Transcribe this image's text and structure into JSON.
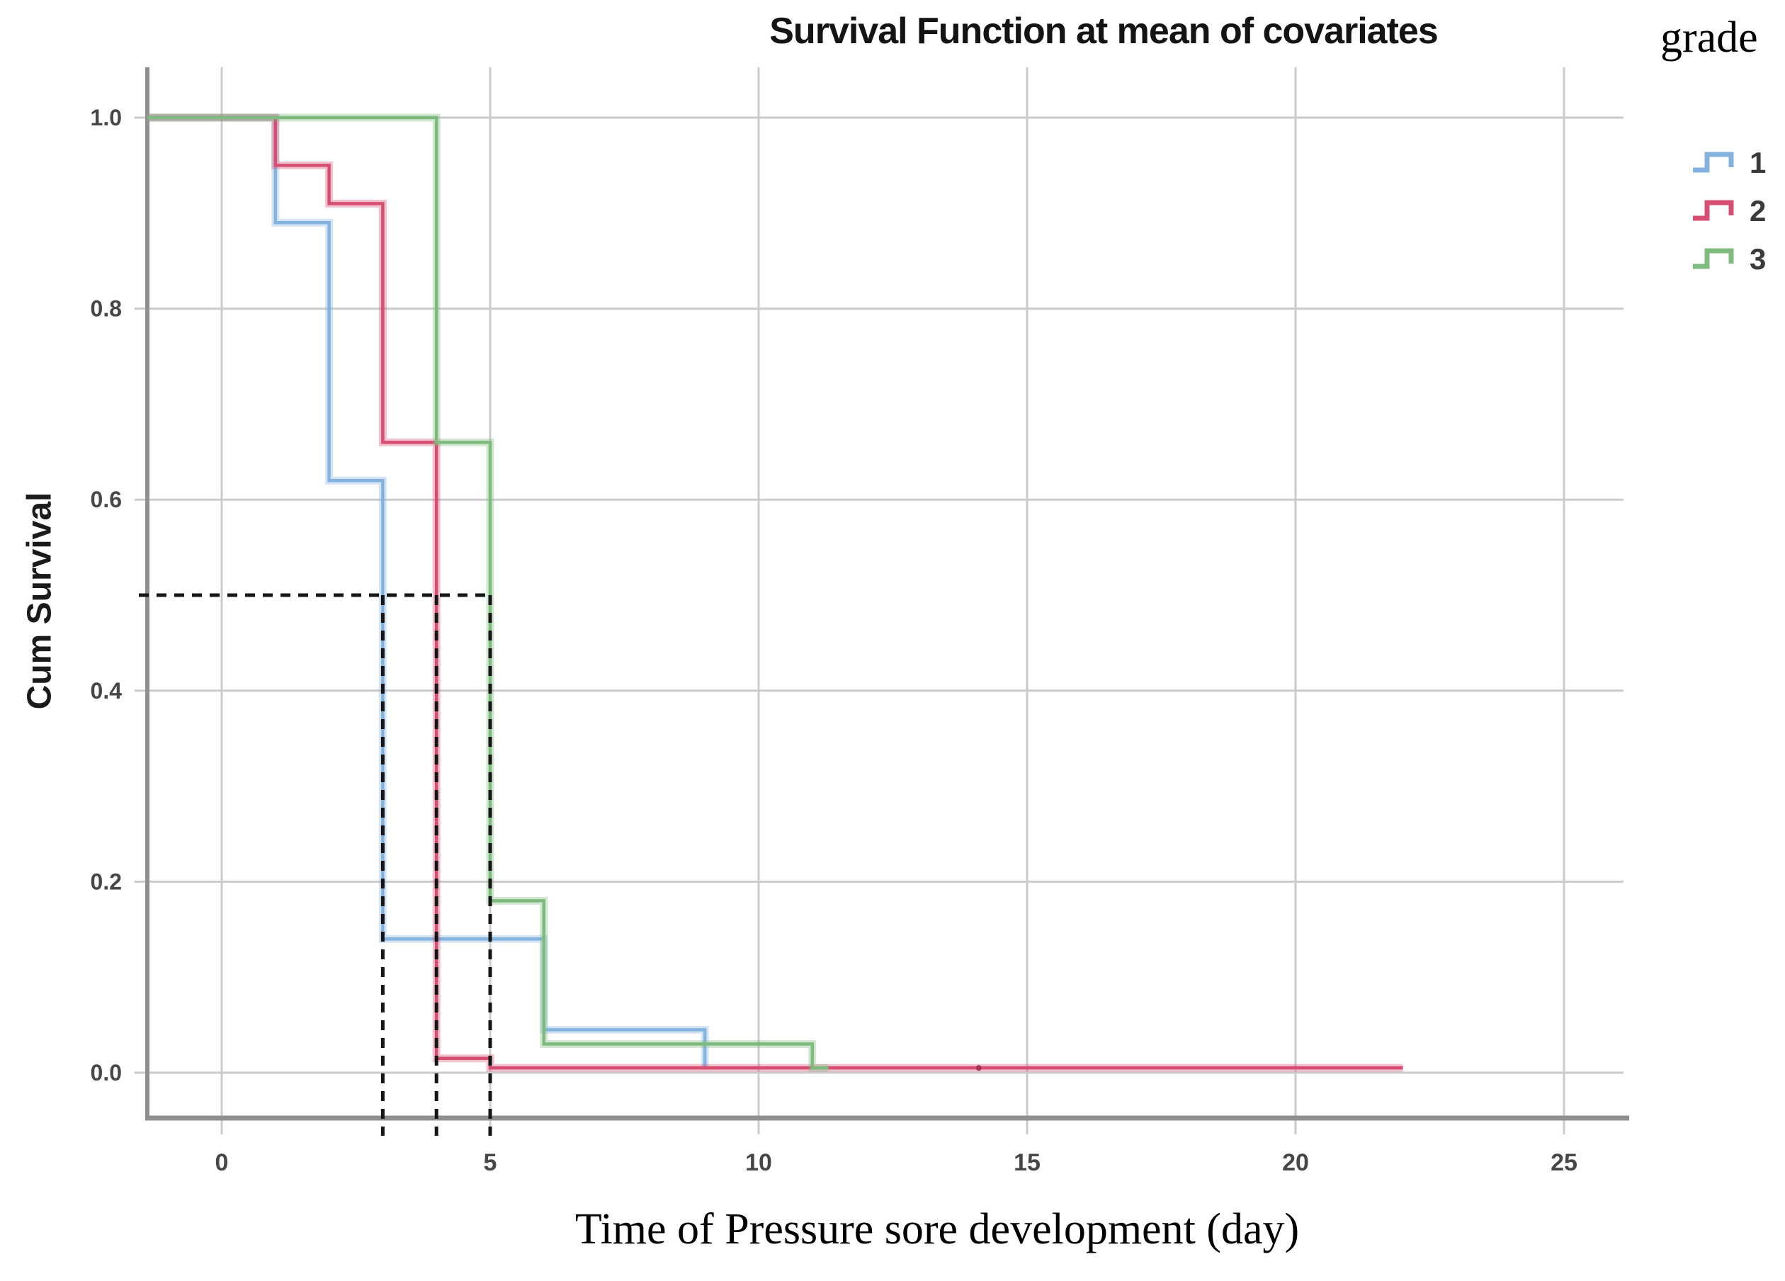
{
  "chart_data": {
    "type": "line",
    "subtype": "survival-step-plot",
    "title": "Survival Function at mean of covariates",
    "xlabel": "Time of Pressure sore development (day)",
    "ylabel": "Cum Survival",
    "legend": {
      "title": "grade",
      "position": "top-right",
      "items": [
        {
          "label": "1",
          "color": "#85b3e0"
        },
        {
          "label": "2",
          "color": "#d64f72"
        },
        {
          "label": "3",
          "color": "#7fbb7e"
        }
      ]
    },
    "x_axis": {
      "ticks": [
        0,
        5,
        10,
        15,
        20,
        25
      ],
      "range_days": [
        0,
        25
      ]
    },
    "y_axis": {
      "ticks": [
        {
          "label": "1.0",
          "value": 1.0
        },
        {
          "label": "0.8",
          "value": 0.8
        },
        {
          "label": "0.6",
          "value": 0.6
        },
        {
          "label": "0.4",
          "value": 0.4
        },
        {
          "label": "0.2",
          "value": 0.2
        },
        {
          "label": "0.0",
          "value": 0.0
        }
      ]
    },
    "grid": true,
    "series": [
      {
        "name": "grade 1",
        "legend_label": "1",
        "color": "#85b3e0",
        "median_survival_day": 3,
        "steps": [
          [
            -1.38,
            1.0
          ],
          [
            1,
            1.0
          ],
          [
            1,
            0.89
          ],
          [
            2,
            0.89
          ],
          [
            2,
            0.62
          ],
          [
            3,
            0.62
          ],
          [
            3,
            0.14
          ],
          [
            6,
            0.14
          ],
          [
            6,
            0.045
          ],
          [
            9,
            0.045
          ],
          [
            9,
            0.005
          ]
        ]
      },
      {
        "name": "grade 2",
        "legend_label": "2",
        "color": "#d64f72",
        "median_survival_day": 4,
        "steps": [
          [
            -1.38,
            1.0
          ],
          [
            1,
            1.0
          ],
          [
            1,
            0.95
          ],
          [
            2,
            0.95
          ],
          [
            2,
            0.91
          ],
          [
            3,
            0.91
          ],
          [
            3,
            0.66
          ],
          [
            4,
            0.66
          ],
          [
            4,
            0.015
          ],
          [
            5,
            0.015
          ],
          [
            5,
            0.005
          ],
          [
            22,
            0.005
          ]
        ]
      },
      {
        "name": "grade 3",
        "legend_label": "3",
        "color": "#7fbb7e",
        "median_survival_day": 5,
        "steps": [
          [
            -1.38,
            1.0
          ],
          [
            4,
            1.0
          ],
          [
            4,
            0.66
          ],
          [
            5,
            0.66
          ],
          [
            5,
            0.18
          ],
          [
            6,
            0.18
          ],
          [
            6,
            0.03
          ],
          [
            11,
            0.03
          ],
          [
            11,
            0.005
          ],
          [
            11.3,
            0.005
          ]
        ]
      }
    ],
    "reference_lines": {
      "style": "dashed",
      "color": "#161616",
      "horizontal_value": 0.5,
      "horizontal_span_days_end": 5,
      "vertical_days": [
        3,
        4,
        5
      ]
    },
    "censor_mark": {
      "day": 14.1,
      "value": 0.005
    }
  }
}
